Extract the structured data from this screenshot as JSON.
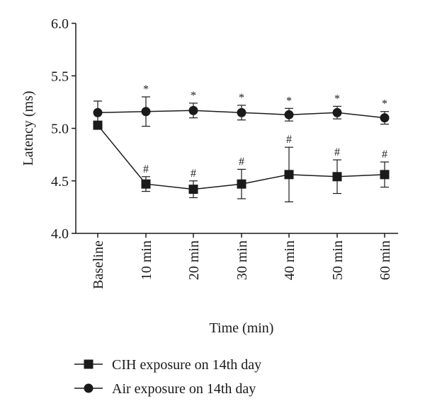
{
  "chart_data": {
    "type": "line",
    "xlabel": "Time (min)",
    "ylabel": "Latency (ms)",
    "ylim": [
      4.0,
      6.0
    ],
    "yticks": [
      "4.0",
      "4.5",
      "5.0",
      "5.5",
      "6.0"
    ],
    "categories": [
      "Baseline",
      "10 min",
      "20 min",
      "30 min",
      "40 min",
      "50 min",
      "60 min"
    ],
    "grid": false,
    "legend_position": "bottom",
    "series": [
      {
        "name": "CIH exposure on 14th day",
        "marker": "square",
        "values": [
          5.03,
          4.47,
          4.42,
          4.47,
          4.56,
          4.54,
          4.56
        ],
        "error": [
          0.03,
          0.07,
          0.08,
          0.14,
          0.26,
          0.16,
          0.12
        ],
        "annotations": [
          "",
          "#",
          "#",
          "#",
          "#",
          "#",
          "#"
        ]
      },
      {
        "name": "Air exposure on 14th day",
        "marker": "circle",
        "values": [
          5.15,
          5.16,
          5.17,
          5.15,
          5.13,
          5.15,
          5.1
        ],
        "error": [
          0.11,
          0.14,
          0.07,
          0.07,
          0.06,
          0.06,
          0.06
        ],
        "annotations": [
          "",
          "*",
          "*",
          "*",
          "*",
          "*",
          "*"
        ]
      }
    ]
  }
}
